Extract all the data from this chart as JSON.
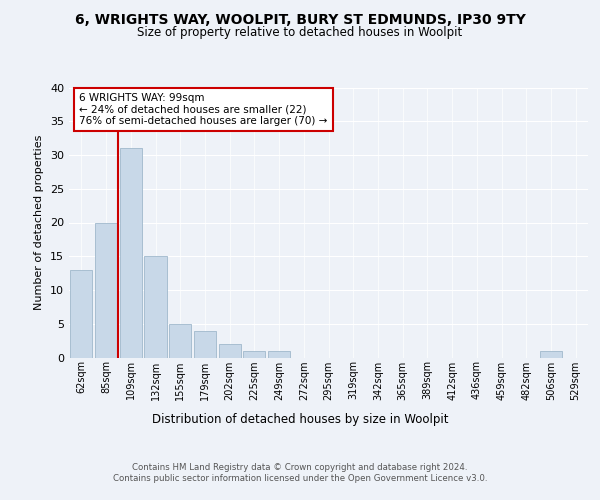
{
  "title1": "6, WRIGHTS WAY, WOOLPIT, BURY ST EDMUNDS, IP30 9TY",
  "title2": "Size of property relative to detached houses in Woolpit",
  "xlabel": "Distribution of detached houses by size in Woolpit",
  "ylabel": "Number of detached properties",
  "categories": [
    "62sqm",
    "85sqm",
    "109sqm",
    "132sqm",
    "155sqm",
    "179sqm",
    "202sqm",
    "225sqm",
    "249sqm",
    "272sqm",
    "295sqm",
    "319sqm",
    "342sqm",
    "365sqm",
    "389sqm",
    "412sqm",
    "436sqm",
    "459sqm",
    "482sqm",
    "506sqm",
    "529sqm"
  ],
  "values": [
    13,
    20,
    31,
    15,
    5,
    4,
    2,
    1,
    1,
    0,
    0,
    0,
    0,
    0,
    0,
    0,
    0,
    0,
    0,
    1,
    0
  ],
  "bar_color": "#c8d8e8",
  "bar_edge_color": "#a0b8cc",
  "ylim": [
    0,
    40
  ],
  "yticks": [
    0,
    5,
    10,
    15,
    20,
    25,
    30,
    35,
    40
  ],
  "vline_x": 1.5,
  "annotation_text": "6 WRIGHTS WAY: 99sqm\n← 24% of detached houses are smaller (22)\n76% of semi-detached houses are larger (70) →",
  "annotation_box_color": "#ffffff",
  "annotation_box_edge": "#cc0000",
  "footnote1": "Contains HM Land Registry data © Crown copyright and database right 2024.",
  "footnote2": "Contains public sector information licensed under the Open Government Licence v3.0.",
  "bg_color": "#eef2f8",
  "plot_bg_color": "#eef2f8"
}
